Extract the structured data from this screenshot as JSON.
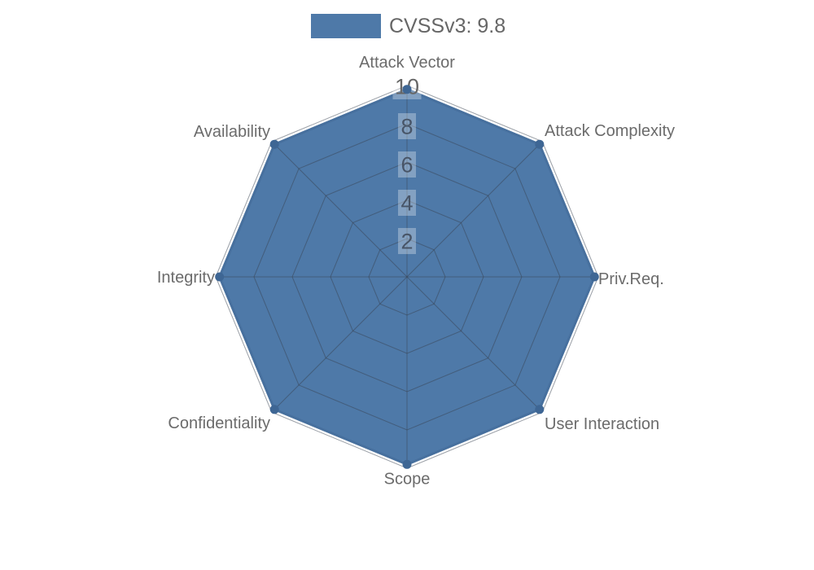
{
  "legend": {
    "label": "CVSSv3: 9.8"
  },
  "chart_data": {
    "type": "radar",
    "categories": [
      "Attack Vector",
      "Attack Complexity",
      "Priv.Req.",
      "User Interaction",
      "Scope",
      "Confidentiality",
      "Integrity",
      "Availability"
    ],
    "series": [
      {
        "name": "CVSSv3: 9.8",
        "values": [
          9.8,
          9.8,
          9.8,
          9.8,
          9.8,
          9.8,
          9.8,
          9.8
        ]
      }
    ],
    "scale": {
      "min": 0,
      "max": 10,
      "tick_step": 2,
      "ticks": [
        2,
        4,
        6,
        8,
        10
      ]
    },
    "legend_position": "top",
    "grid": true,
    "colors": {
      "fill": "#4e79a8",
      "border": "#47709e",
      "point": "#3e6694",
      "grid_line": "rgba(55,65,80,0.5)",
      "tick_text": "#666666",
      "tick_text_muted": "rgba(58,68,84,0.82)",
      "tick_backdrop": "rgba(255,255,255,0.30)",
      "axis_label": "#6b6b6b"
    }
  }
}
